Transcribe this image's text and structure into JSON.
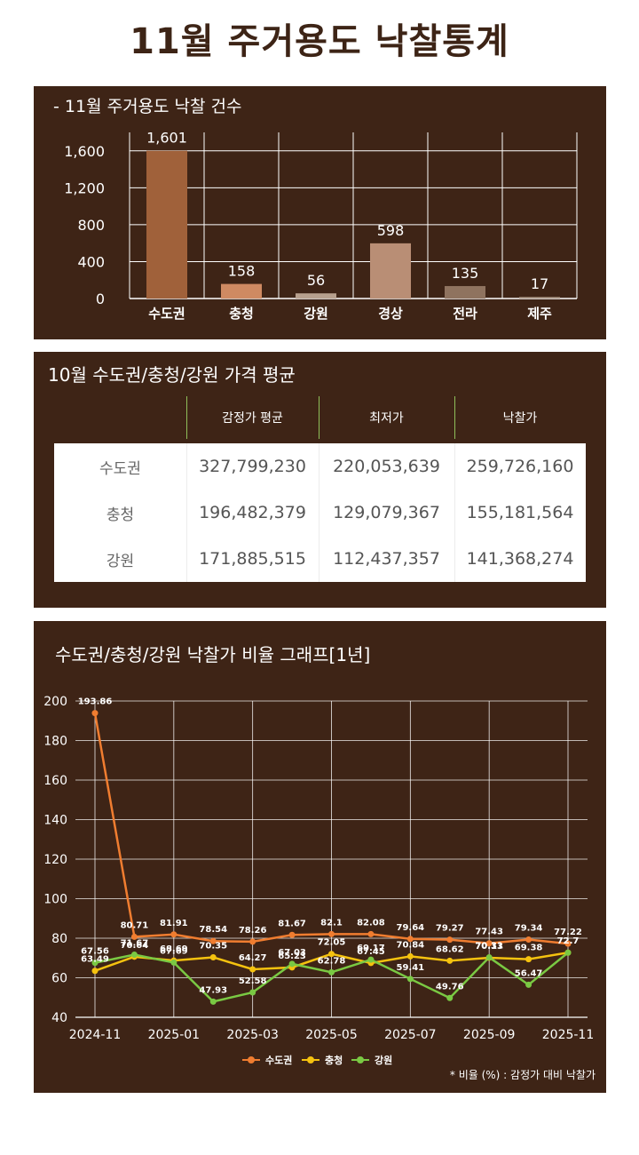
{
  "page_title": "11월 주거용도 낙찰통계",
  "panel1": {
    "title": "- 11월 주거용도 낙찰 건수"
  },
  "panel2": {
    "title": "10월 수도권/충청/강원 가격 평균",
    "columns": [
      "감정가 평균",
      "최저가",
      "낙찰가"
    ],
    "rows": [
      {
        "region": "수도권",
        "values": [
          "327,799,230",
          "220,053,639",
          "259,726,160"
        ]
      },
      {
        "region": "충청",
        "values": [
          "196,482,379",
          "129,079,367",
          "155,181,564"
        ]
      },
      {
        "region": "강원",
        "values": [
          "171,885,515",
          "112,437,357",
          "141,368,274"
        ]
      }
    ]
  },
  "panel3": {
    "title": "수도권/충청/강원 낙찰가 비율 그래프[1년]",
    "note": "* 비율 (%) : 감정가 대비 낙찰가"
  },
  "chart_data": [
    {
      "type": "bar",
      "title": "- 11월 주거용도 낙찰 건수",
      "categories": [
        "수도권",
        "충청",
        "강원",
        "경상",
        "전라",
        "제주"
      ],
      "values": [
        1601,
        158,
        56,
        598,
        135,
        17
      ],
      "data_labels": [
        "1,601",
        "158",
        "56",
        "598",
        "135",
        "17"
      ],
      "bar_colors": [
        "#a0613a",
        "#cf8a62",
        "#b7a08e",
        "#b98e75",
        "#8f735f",
        "#a99484"
      ],
      "ylim": [
        0,
        1800
      ],
      "yticks": [
        0,
        400,
        800,
        1200,
        1600
      ],
      "ytick_labels": [
        "0",
        "400",
        "800",
        "1,200",
        "1,600"
      ],
      "grid": true
    },
    {
      "type": "line",
      "title": "수도권/충청/강원 낙찰가 비율 그래프[1년]",
      "x": [
        "2024-11",
        "2024-12",
        "2025-01",
        "2025-02",
        "2025-03",
        "2025-04",
        "2025-05",
        "2025-06",
        "2025-07",
        "2025-08",
        "2025-09",
        "2025-10",
        "2025-11"
      ],
      "xtick_labels": [
        "2024-11",
        "2025-01",
        "2025-03",
        "2025-05",
        "2025-07",
        "2025-09",
        "2025-11"
      ],
      "ylim": [
        40,
        200
      ],
      "yticks": [
        40,
        60,
        80,
        100,
        120,
        140,
        160,
        180,
        200
      ],
      "legend_position": "bottom",
      "grid": true,
      "series": [
        {
          "name": "수도권",
          "color": "#f07d30",
          "values": [
            193.86,
            80.71,
            81.91,
            78.54,
            78.26,
            81.67,
            82.1,
            82.08,
            79.64,
            79.27,
            77.43,
            79.34,
            77.22
          ],
          "labels": [
            "193.86",
            "80.71",
            "81.91",
            "78.54",
            "78.26",
            "81.67",
            "82.1",
            "82.08",
            "79.64",
            "79.27",
            "77.43",
            "79.34",
            "77.22"
          ]
        },
        {
          "name": "충청",
          "color": "#f5c20f",
          "values": [
            63.49,
            70.64,
            68.69,
            70.35,
            64.27,
            65.23,
            72.05,
            67.45,
            70.84,
            68.62,
            70.13,
            69.38,
            72.7
          ],
          "labels": [
            "63.49",
            "70.64",
            "68.69",
            "70.35",
            "64.27",
            "65.23",
            "72.05",
            "67.45",
            "70.84",
            "68.62",
            "70.13",
            "69.38",
            "72.7"
          ]
        },
        {
          "name": "강원",
          "color": "#7ac943",
          "values": [
            67.56,
            71.67,
            67.69,
            47.93,
            52.58,
            67.03,
            62.78,
            69.17,
            59.41,
            49.76,
            70.31,
            56.47,
            72.7
          ],
          "labels": [
            "67.56",
            "71.67",
            "67.69",
            "47.93",
            "52.58",
            "67.03",
            "62.78",
            "69.17",
            "59.41",
            "49.76",
            "70.31",
            "56.47",
            "72.7"
          ]
        }
      ]
    }
  ]
}
